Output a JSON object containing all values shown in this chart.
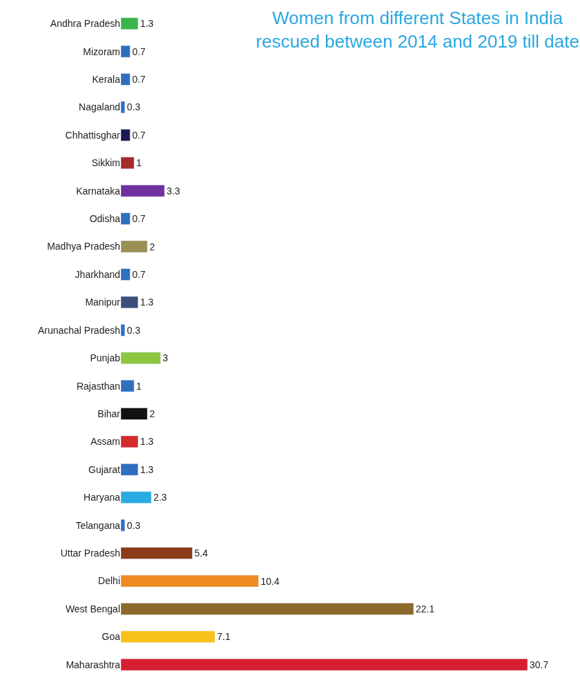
{
  "chart_data": {
    "type": "bar",
    "orientation": "horizontal",
    "data_labels": true,
    "title": "Women from different States in India\nrescued between 2014 and 2019 till date",
    "categories": [
      "Andhra Pradesh",
      "Mizoram",
      "Kerala",
      "Nagaland",
      "Chhattisghar",
      "Sikkim",
      "Karnataka",
      "Odisha",
      "Madhya Pradesh",
      "Jharkhand",
      "Manipur",
      "Arunachal Pradesh",
      "Punjab",
      "Rajasthan",
      "Bihar",
      "Assam",
      "Gujarat",
      "Haryana",
      "Telangana",
      "Uttar Pradesh",
      "Delhi",
      "West Bengal",
      "Goa",
      "Maharashtra"
    ],
    "values": [
      1.3,
      0.7,
      0.7,
      0.3,
      0.7,
      1,
      3.3,
      0.7,
      2,
      0.7,
      1.3,
      0.3,
      3,
      1,
      2,
      1.3,
      1.3,
      2.3,
      0.3,
      5.4,
      10.4,
      22.1,
      7.1,
      30.7
    ],
    "colors": [
      "#3cb44b",
      "#2e6fc0",
      "#2e6fc0",
      "#2e6fc0",
      "#1a1a4e",
      "#a52a2a",
      "#7030a0",
      "#2e6fc0",
      "#9a8f55",
      "#2e6fc0",
      "#3b4f7a",
      "#2e6fc0",
      "#8dc63f",
      "#2e6fc0",
      "#111111",
      "#d42a2a",
      "#2e6fc0",
      "#29abe2",
      "#2e6fc0",
      "#8b3a1a",
      "#f08a24",
      "#8b6a2b",
      "#f9c21a",
      "#d42030"
    ],
    "legend": false
  }
}
